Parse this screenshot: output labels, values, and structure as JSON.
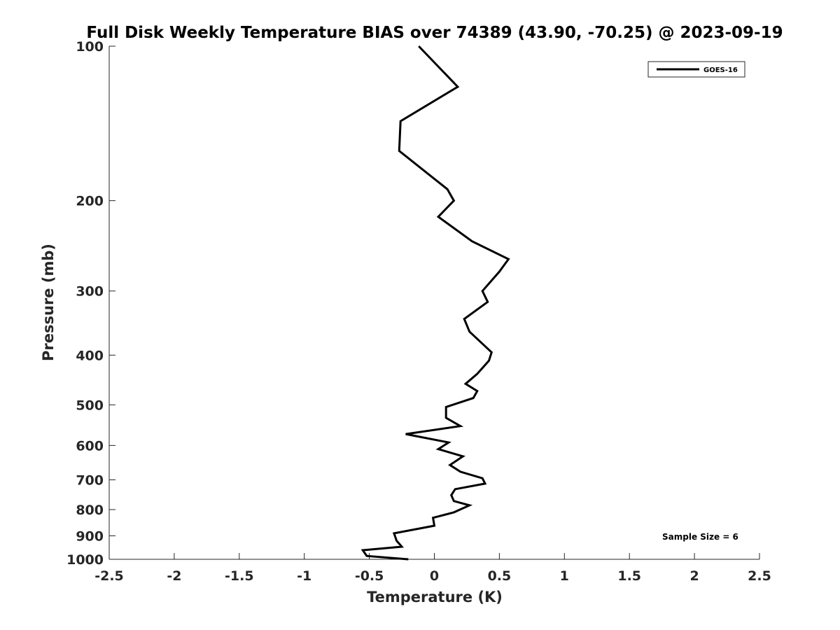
{
  "chart_data": {
    "type": "line",
    "title": "Full Disk Weekly Temperature BIAS over 74389 (43.90, -70.25) @ 2023-09-19",
    "xlabel": "Temperature (K)",
    "ylabel": "Pressure (mb)",
    "xlim": [
      -2.5,
      2.5
    ],
    "ylim": [
      100,
      1000
    ],
    "y_scale": "log",
    "y_reversed": true,
    "grid": false,
    "legend_position": "top-right",
    "x_ticks": [
      -2.5,
      -2,
      -1.5,
      -1,
      -0.5,
      0,
      0.5,
      1,
      1.5,
      2,
      2.5
    ],
    "x_tick_labels": [
      "-2.5",
      "-2",
      "-1.5",
      "-1",
      "-0.5",
      "0",
      "0.5",
      "1",
      "1.5",
      "2",
      "2.5"
    ],
    "y_ticks": [
      100,
      200,
      300,
      400,
      500,
      600,
      700,
      800,
      900,
      1000
    ],
    "y_tick_labels": [
      "100",
      "200",
      "300",
      "400",
      "500",
      "600",
      "700",
      "800",
      "900",
      "1000"
    ],
    "series": [
      {
        "name": "GOES-16",
        "color": "#000000",
        "points": [
          {
            "x": -0.12,
            "p": 100
          },
          {
            "x": 0.18,
            "p": 120
          },
          {
            "x": -0.26,
            "p": 140
          },
          {
            "x": -0.27,
            "p": 160
          },
          {
            "x": 0.1,
            "p": 190
          },
          {
            "x": 0.15,
            "p": 200
          },
          {
            "x": 0.03,
            "p": 215
          },
          {
            "x": 0.29,
            "p": 240
          },
          {
            "x": 0.57,
            "p": 260
          },
          {
            "x": 0.5,
            "p": 275
          },
          {
            "x": 0.37,
            "p": 300
          },
          {
            "x": 0.41,
            "p": 315
          },
          {
            "x": 0.23,
            "p": 340
          },
          {
            "x": 0.27,
            "p": 360
          },
          {
            "x": 0.44,
            "p": 395
          },
          {
            "x": 0.42,
            "p": 410
          },
          {
            "x": 0.33,
            "p": 435
          },
          {
            "x": 0.24,
            "p": 455
          },
          {
            "x": 0.33,
            "p": 470
          },
          {
            "x": 0.3,
            "p": 485
          },
          {
            "x": 0.09,
            "p": 505
          },
          {
            "x": 0.09,
            "p": 530
          },
          {
            "x": 0.2,
            "p": 550
          },
          {
            "x": -0.22,
            "p": 570
          },
          {
            "x": 0.11,
            "p": 592
          },
          {
            "x": 0.03,
            "p": 610
          },
          {
            "x": 0.22,
            "p": 630
          },
          {
            "x": 0.12,
            "p": 655
          },
          {
            "x": 0.2,
            "p": 675
          },
          {
            "x": 0.37,
            "p": 695
          },
          {
            "x": 0.39,
            "p": 712
          },
          {
            "x": 0.16,
            "p": 730
          },
          {
            "x": 0.13,
            "p": 750
          },
          {
            "x": 0.15,
            "p": 770
          },
          {
            "x": 0.27,
            "p": 785
          },
          {
            "x": 0.15,
            "p": 810
          },
          {
            "x": -0.01,
            "p": 830
          },
          {
            "x": 0.0,
            "p": 860
          },
          {
            "x": -0.31,
            "p": 890
          },
          {
            "x": -0.29,
            "p": 920
          },
          {
            "x": -0.25,
            "p": 945
          },
          {
            "x": -0.55,
            "p": 960
          },
          {
            "x": -0.52,
            "p": 985
          },
          {
            "x": -0.2,
            "p": 1000
          }
        ]
      }
    ],
    "legend": [
      {
        "label": "GOES-16",
        "color": "#000000"
      }
    ],
    "annotations": [
      {
        "text": "Sample Size = 6",
        "position": "bottom-right"
      }
    ]
  }
}
